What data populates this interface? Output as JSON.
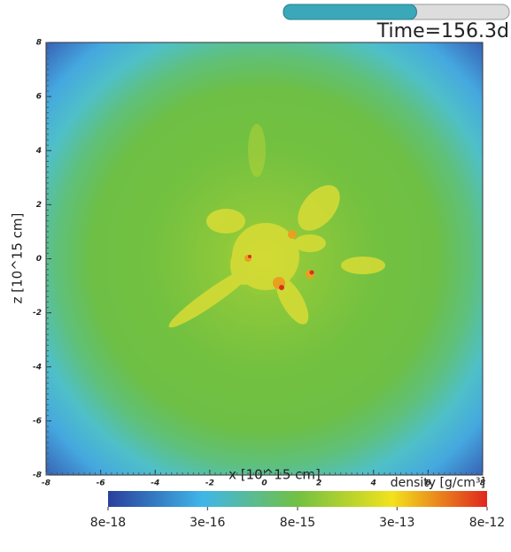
{
  "chart_data": {
    "type": "heatmap",
    "annotation": "Time=156.3d",
    "time_progress": 0.59,
    "xlabel": "x [10^15 cm]",
    "ylabel": "z [10^15 cm]",
    "xlim": [
      -8,
      8
    ],
    "ylim": [
      -8,
      8
    ],
    "xticks": [
      -8,
      -6,
      -4,
      -2,
      0,
      2,
      4,
      6,
      8
    ],
    "yticks": [
      -8,
      -6,
      -4,
      -2,
      0,
      2,
      4,
      6,
      8
    ],
    "colorbar": {
      "label": "density [g/cm³]",
      "scale": "log",
      "lim": [
        8e-18,
        8e-12
      ],
      "ticks": [
        {
          "value": 8e-18,
          "label": "8e-18"
        },
        {
          "value": 3e-16,
          "label": "3e-16"
        },
        {
          "value": 8e-15,
          "label": "8e-15"
        },
        {
          "value": 3e-13,
          "label": "3e-13"
        },
        {
          "value": 8e-12,
          "label": "8e-12"
        }
      ],
      "colors": [
        "#2a3f9c",
        "#3fb6e8",
        "#72c043",
        "#f2e21c",
        "#e0261e"
      ]
    }
  }
}
